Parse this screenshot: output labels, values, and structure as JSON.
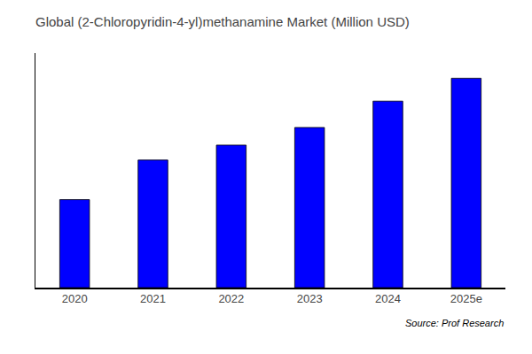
{
  "chart_data": {
    "type": "bar",
    "title": "Global (2-Chloropyridin-4-yl)methanamine Market (Million USD)",
    "categories": [
      "2020",
      "2021",
      "2022",
      "2023",
      "2024",
      "2025e"
    ],
    "values": [
      1.0,
      1.45,
      1.62,
      1.82,
      2.12,
      2.38
    ],
    "color": "#0000ff",
    "ylim": [
      0,
      2.6656
    ],
    "grid": false,
    "tick_labels": "x",
    "annotations": [
      "Source: Prof Research"
    ]
  }
}
